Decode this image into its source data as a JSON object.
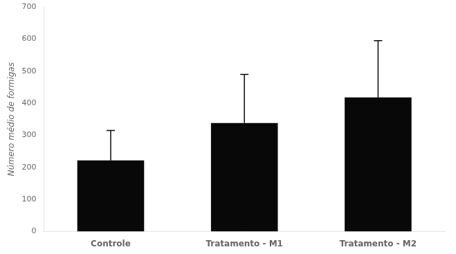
{
  "chart_data": {
    "type": "bar",
    "categories": [
      "Controle",
      "Tratamento - M1",
      "Tratamento - M2"
    ],
    "values": [
      222,
      338,
      418
    ],
    "errors_upper": [
      93,
      152,
      177
    ],
    "color": "#080808",
    "ylabel": "Número médio de formigas",
    "ylim": [
      0,
      700
    ],
    "yticks": [
      0,
      100,
      200,
      300,
      400,
      500,
      600,
      700
    ],
    "grid": false
  }
}
